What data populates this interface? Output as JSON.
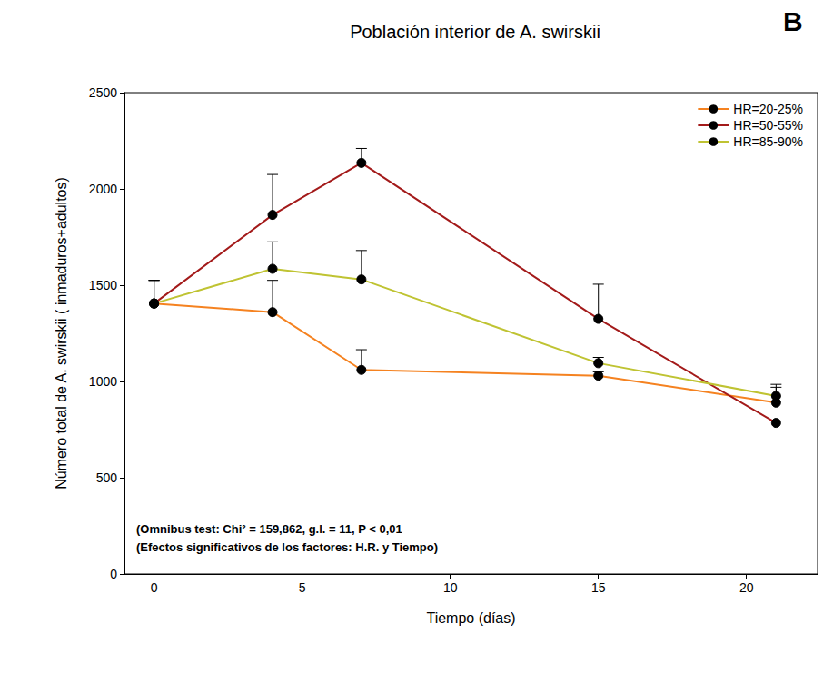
{
  "chart_data": {
    "type": "line",
    "title": "Población interior de A. swirskii",
    "panel_label": "B",
    "x_label": "Tiempo (días)",
    "y_label": "Número total de A. swirskii ( inmaduros+adultos)",
    "annotations": [
      "(Omnibus test: Chi² = 159,862, g.l. = 11, P < 0,01",
      "(Efectos significativos de los factores: H.R. y Tiempo)"
    ],
    "x": [
      0,
      4,
      7,
      15,
      21
    ],
    "series": [
      {
        "name": "HR=20-25%",
        "color": "#f58220",
        "values": [
          1405,
          1360,
          1060,
          1030,
          890
        ],
        "errors": [
          120,
          165,
          105,
          20,
          80
        ]
      },
      {
        "name": "HR=50-55%",
        "color": "#a31a1a",
        "values": [
          1405,
          1865,
          2135,
          1325,
          785
        ],
        "errors": [
          120,
          210,
          75,
          180,
          10
        ]
      },
      {
        "name": "HR=85-90%",
        "color": "#bfc332",
        "values": [
          1405,
          1585,
          1530,
          1095,
          925
        ],
        "errors": [
          120,
          140,
          150,
          30,
          60
        ]
      }
    ],
    "xlim": [
      -1,
      22.4
    ],
    "xticks": [
      0,
      5,
      10,
      15,
      20
    ],
    "ylim": [
      0,
      2500
    ],
    "yticks": [
      0,
      500,
      1000,
      1500,
      2000,
      2500
    ],
    "grid": false,
    "legend": "top-right",
    "marker": "circle"
  }
}
